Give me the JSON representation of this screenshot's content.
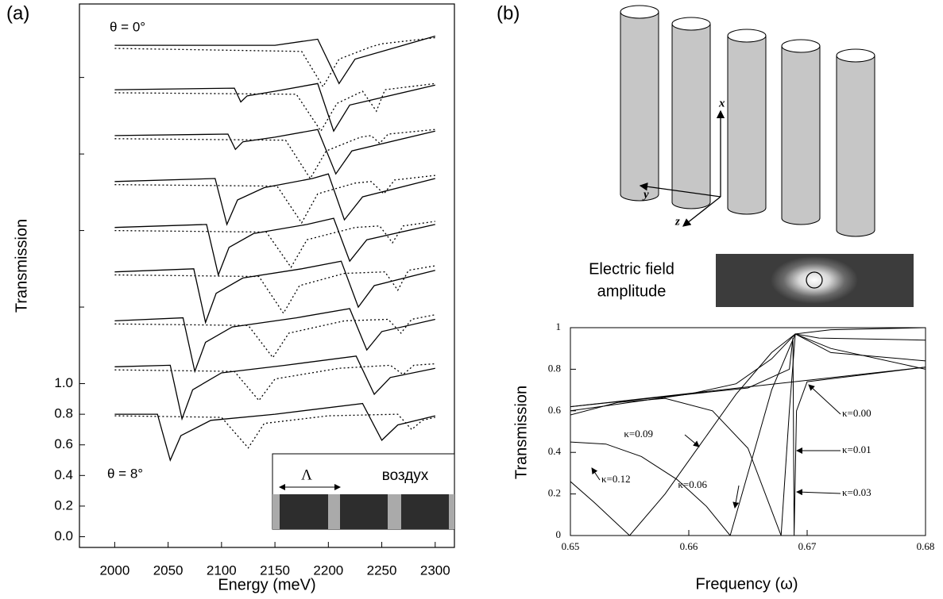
{
  "panel_labels": [
    "(a)",
    "(b)"
  ],
  "diagram": {
    "axes": [
      "x",
      "y",
      "z"
    ],
    "field_label": [
      "Electric field",
      "amplitude"
    ]
  },
  "chart_data": [
    {
      "type": "line",
      "xlabel": "Energy (meV)",
      "ylabel": "Transmission",
      "color": "#000000",
      "annotations": [
        "θ = 0°",
        "θ = 8°"
      ],
      "inset": {
        "period_label": "Λ",
        "medium_label": "воздух"
      },
      "xlim": [
        1967,
        2318
      ],
      "ylim": [
        -0.07,
        3.48
      ],
      "xticks": [
        2000,
        2050,
        2100,
        2150,
        2200,
        2250,
        2300
      ],
      "yticks": [
        {
          "value": 0,
          "label": "0.0"
        },
        0.2,
        0.4,
        0.6,
        0.8,
        {
          "value": 1,
          "label": "1.0"
        }
      ],
      "yticks_minor": [
        1.5,
        2,
        2.5,
        3
      ],
      "series": [
        {
          "style": "solid",
          "x": [
            2000,
            2040,
            2052,
            2062,
            2090,
            2150,
            2232,
            2250,
            2265,
            2300
          ],
          "values": [
            0.8,
            0.8,
            0.5,
            0.66,
            0.76,
            0.8,
            0.87,
            0.63,
            0.73,
            0.79
          ]
        },
        {
          "style": "dotted",
          "x": [
            2000,
            2100,
            2125,
            2140,
            2200,
            2265,
            2278,
            2288,
            2300
          ],
          "values": [
            0.79,
            0.78,
            0.58,
            0.74,
            0.79,
            0.8,
            0.7,
            0.76,
            0.78
          ]
        },
        {
          "style": "solid",
          "x": [
            2000,
            2052,
            2063,
            2073,
            2100,
            2160,
            2226,
            2243,
            2258,
            2300
          ],
          "values": [
            1.11,
            1.12,
            0.77,
            0.96,
            1.07,
            1.12,
            1.18,
            0.93,
            1.04,
            1.1
          ]
        },
        {
          "style": "dotted",
          "x": [
            2000,
            2112,
            2135,
            2150,
            2210,
            2258,
            2270,
            2280,
            2300
          ],
          "values": [
            1.09,
            1.08,
            0.89,
            1.03,
            1.1,
            1.12,
            1.06,
            1.12,
            1.13
          ]
        },
        {
          "style": "solid",
          "x": [
            2000,
            2064,
            2075,
            2085,
            2110,
            2170,
            2220,
            2236,
            2250,
            2300
          ],
          "values": [
            1.41,
            1.43,
            1.08,
            1.27,
            1.37,
            1.43,
            1.49,
            1.22,
            1.34,
            1.42
          ]
        },
        {
          "style": "dotted",
          "x": [
            2000,
            2125,
            2148,
            2163,
            2215,
            2256,
            2268,
            2278,
            2300
          ],
          "values": [
            1.39,
            1.38,
            1.17,
            1.33,
            1.41,
            1.42,
            1.33,
            1.42,
            1.45
          ]
        },
        {
          "style": "solid",
          "x": [
            2000,
            2074,
            2085,
            2095,
            2120,
            2175,
            2212,
            2228,
            2243,
            2300
          ],
          "values": [
            1.73,
            1.75,
            1.4,
            1.59,
            1.69,
            1.75,
            1.8,
            1.5,
            1.64,
            1.74
          ]
        },
        {
          "style": "dotted",
          "x": [
            2000,
            2135,
            2158,
            2173,
            2215,
            2253,
            2265,
            2275,
            2300
          ],
          "values": [
            1.71,
            1.7,
            1.46,
            1.64,
            1.72,
            1.73,
            1.61,
            1.74,
            1.77
          ]
        },
        {
          "style": "solid",
          "x": [
            2000,
            2086,
            2097,
            2107,
            2130,
            2180,
            2205,
            2220,
            2236,
            2300
          ],
          "values": [
            2.02,
            2.04,
            1.71,
            1.89,
            1.98,
            2.04,
            2.08,
            1.8,
            1.94,
            2.04
          ]
        },
        {
          "style": "dotted",
          "x": [
            2000,
            2142,
            2165,
            2180,
            2225,
            2248,
            2260,
            2270,
            2300
          ],
          "values": [
            2.0,
            1.99,
            1.76,
            1.94,
            2.02,
            2.03,
            1.92,
            2.03,
            2.06
          ]
        },
        {
          "style": "solid",
          "x": [
            2000,
            2094,
            2105,
            2115,
            2140,
            2185,
            2200,
            2215,
            2232,
            2300
          ],
          "values": [
            2.32,
            2.34,
            2.04,
            2.2,
            2.28,
            2.34,
            2.37,
            2.07,
            2.22,
            2.34
          ]
        },
        {
          "style": "dotted",
          "x": [
            2000,
            2152,
            2175,
            2190,
            2225,
            2240,
            2252,
            2262,
            2300
          ],
          "values": [
            2.3,
            2.29,
            2.05,
            2.24,
            2.31,
            2.32,
            2.24,
            2.33,
            2.36
          ]
        },
        {
          "style": "solid",
          "x": [
            2000,
            2106,
            2113,
            2120,
            2150,
            2190,
            2207,
            2222,
            2300
          ],
          "values": [
            2.62,
            2.63,
            2.53,
            2.58,
            2.61,
            2.66,
            2.37,
            2.52,
            2.65
          ]
        },
        {
          "style": "dotted",
          "x": [
            2000,
            2160,
            2183,
            2198,
            2230,
            2240,
            2248,
            2256,
            2300
          ],
          "values": [
            2.6,
            2.59,
            2.34,
            2.52,
            2.61,
            2.62,
            2.57,
            2.63,
            2.66
          ]
        },
        {
          "style": "solid",
          "x": [
            2000,
            2112,
            2118,
            2124,
            2150,
            2190,
            2205,
            2220,
            2300
          ],
          "values": [
            2.92,
            2.93,
            2.84,
            2.88,
            2.91,
            2.96,
            2.65,
            2.82,
            2.95
          ]
        },
        {
          "style": "dotted",
          "x": [
            2000,
            2170,
            2193,
            2208,
            2232,
            2245,
            2253,
            2300
          ],
          "values": [
            2.9,
            2.89,
            2.65,
            2.83,
            2.91,
            2.78,
            2.92,
            2.96
          ]
        },
        {
          "style": "solid",
          "x": [
            2000,
            2150,
            2190,
            2210,
            2225,
            2300
          ],
          "values": [
            3.21,
            3.21,
            3.25,
            2.96,
            3.12,
            3.27
          ]
        },
        {
          "style": "dotted",
          "x": [
            2000,
            2175,
            2195,
            2210,
            2240,
            2250,
            2300
          ],
          "values": [
            3.19,
            3.17,
            2.94,
            3.12,
            3.2,
            3.22,
            3.26
          ]
        }
      ]
    },
    {
      "type": "line",
      "xlabel": "Frequency (ω)",
      "ylabel": "Transmission",
      "color": "#000000",
      "xlim": [
        0.65,
        0.68
      ],
      "ylim": [
        0,
        1
      ],
      "xticks": [
        0.65,
        0.66,
        0.67,
        0.68
      ],
      "yticks": [
        0,
        0.2,
        0.4,
        0.6,
        0.8,
        1
      ],
      "series": [
        {
          "name": "κ=0.00",
          "x": [
            0.65,
            0.68
          ],
          "values": [
            0.62,
            0.81
          ]
        },
        {
          "name": "κ=0.01",
          "x": [
            0.65,
            0.665,
            0.6685,
            0.6688,
            0.6689,
            0.6691,
            0.67,
            0.68
          ],
          "values": [
            0.62,
            0.71,
            0.8,
            0.95,
            0,
            0.6,
            0.74,
            0.81
          ]
        },
        {
          "name": "κ=0.03",
          "x": [
            0.65,
            0.654,
            0.658,
            0.662,
            0.665,
            0.6668,
            0.6678,
            0.6685,
            0.669,
            0.671,
            0.68
          ],
          "values": [
            0.58,
            0.64,
            0.66,
            0.6,
            0.42,
            0.15,
            0,
            0.6,
            0.97,
            0.95,
            0.94
          ]
        },
        {
          "name": "κ=0.06",
          "x": [
            0.65,
            0.653,
            0.656,
            0.659,
            0.6615,
            0.6635,
            0.665,
            0.667,
            0.669,
            0.672,
            0.68
          ],
          "values": [
            0.45,
            0.44,
            0.38,
            0.27,
            0.14,
            0,
            0.3,
            0.7,
            0.97,
            0.99,
            1
          ]
        },
        {
          "name": "κ=0.09",
          "x": [
            0.65,
            0.655,
            0.66,
            0.664,
            0.667,
            0.669,
            0.672,
            0.68
          ],
          "values": [
            0.6,
            0.64,
            0.68,
            0.73,
            0.85,
            0.97,
            0.88,
            0.84
          ]
        },
        {
          "name": "κ=0.12",
          "x": [
            0.65,
            0.652,
            0.655,
            0.658,
            0.661,
            0.664,
            0.667,
            0.669,
            0.672,
            0.68
          ],
          "values": [
            0.26,
            0.16,
            0,
            0.2,
            0.44,
            0.68,
            0.88,
            0.97,
            0.9,
            0.8
          ]
        }
      ]
    }
  ]
}
